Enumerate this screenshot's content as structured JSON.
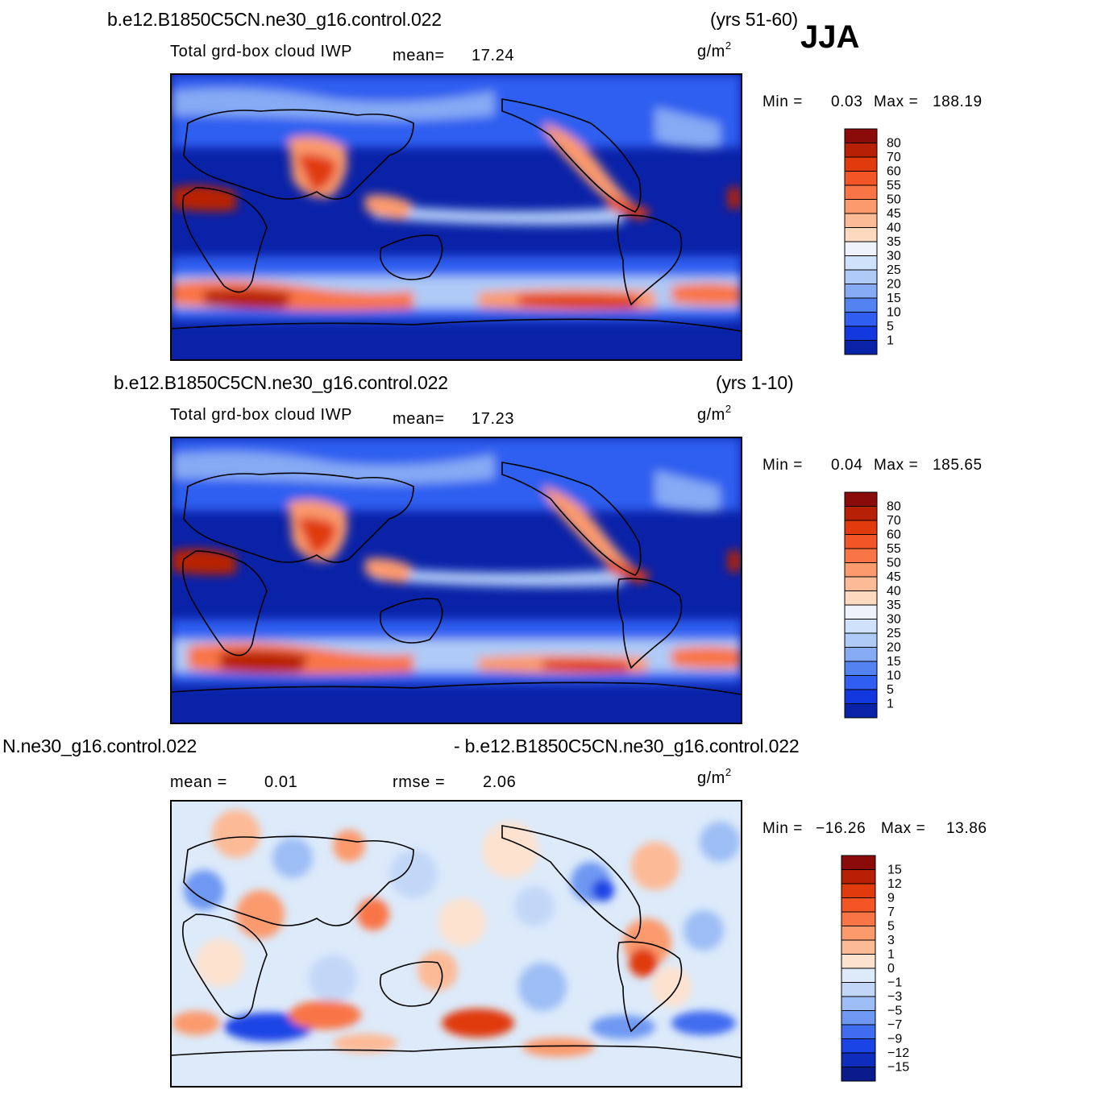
{
  "season": "JJA",
  "panels": [
    {
      "case": "b.e12.B1850C5CN.ne30_g16.control.022",
      "years": "(yrs 51-60)",
      "variable": "Total grd-box cloud IWP",
      "mean_label": "mean=",
      "mean_value": "17.24",
      "units_base": "g/m",
      "units_exp": "2",
      "min_label": "Min =",
      "min_value": "0.03",
      "max_label": "Max =",
      "max_value": "188.19",
      "colorbar": {
        "levels": [
          "80",
          "70",
          "60",
          "55",
          "50",
          "45",
          "40",
          "35",
          "30",
          "25",
          "20",
          "15",
          "10",
          "5",
          "1"
        ],
        "colors": [
          "#8b0a0a",
          "#b82006",
          "#e03a0d",
          "#f45527",
          "#f97546",
          "#fb9a6d",
          "#fdba96",
          "#fdd9c0",
          "#eef3fb",
          "#d0e2fb",
          "#aecaf7",
          "#86aaf4",
          "#5283f1",
          "#2f5ef0",
          "#1438e0",
          "#0a22a8"
        ]
      }
    },
    {
      "case": "b.e12.B1850C5CN.ne30_g16.control.022",
      "years": "(yrs 1-10)",
      "variable": "Total grd-box cloud IWP",
      "mean_label": "mean=",
      "mean_value": "17.23",
      "units_base": "g/m",
      "units_exp": "2",
      "min_label": "Min =",
      "min_value": "0.04",
      "max_label": "Max =",
      "max_value": "185.65",
      "colorbar": {
        "levels": [
          "80",
          "70",
          "60",
          "55",
          "50",
          "45",
          "40",
          "35",
          "30",
          "25",
          "20",
          "15",
          "10",
          "5",
          "1"
        ],
        "colors": [
          "#8b0a0a",
          "#b82006",
          "#e03a0d",
          "#f45527",
          "#f97546",
          "#fb9a6d",
          "#fdba96",
          "#fdd9c0",
          "#eef3fb",
          "#d0e2fb",
          "#aecaf7",
          "#86aaf4",
          "#5283f1",
          "#2f5ef0",
          "#1438e0",
          "#0a22a8"
        ]
      }
    },
    {
      "case_left": "N.ne30_g16.control.022",
      "case_right": "- b.e12.B1850C5CN.ne30_g16.control.022",
      "mean_label": "mean =",
      "mean_value": "0.01",
      "rmse_label": "rmse =",
      "rmse_value": "2.06",
      "units_base": "g/m",
      "units_exp": "2",
      "min_label": "Min =",
      "min_value": "−16.26",
      "max_label": "Max =",
      "max_value": "13.86",
      "colorbar": {
        "levels": [
          "15",
          "12",
          "9",
          "7",
          "5",
          "3",
          "1",
          "0",
          "−1",
          "−3",
          "−5",
          "−7",
          "−9",
          "−12",
          "−15"
        ],
        "colors": [
          "#8b0a0a",
          "#b82006",
          "#e03a0d",
          "#f45527",
          "#f97546",
          "#fb9a6d",
          "#fdba96",
          "#fde2cf",
          "#dceafa",
          "#c2d7f8",
          "#9cbdf5",
          "#6e98f2",
          "#3f6cf0",
          "#1a44e6",
          "#0f2dbd",
          "#0a1c8c"
        ]
      }
    }
  ]
}
